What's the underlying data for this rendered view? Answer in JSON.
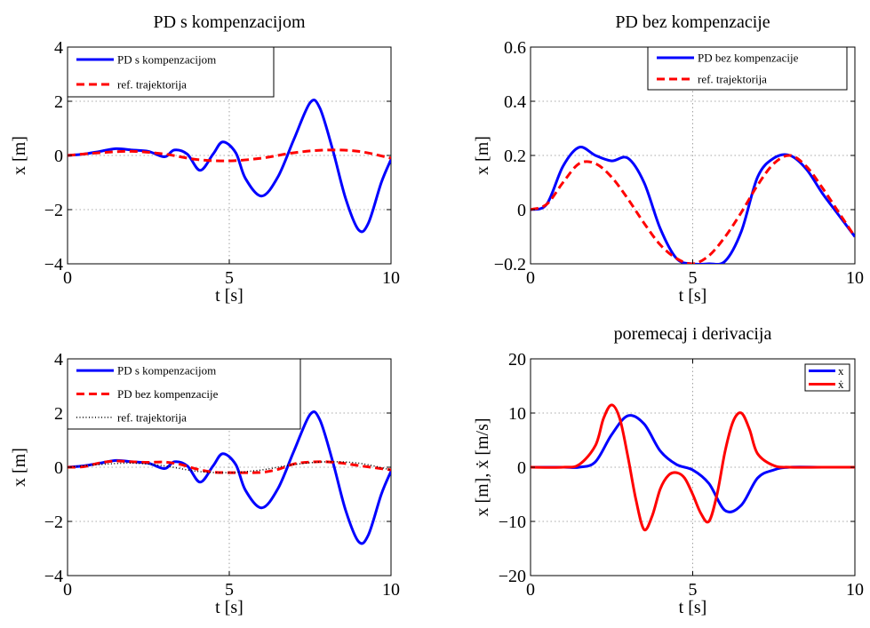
{
  "chart_data": [
    {
      "type": "line",
      "title": "PD s kompenzacijom",
      "xlabel": "t [s]",
      "ylabel": "x [m]",
      "xlim": [
        0,
        10
      ],
      "ylim": [
        -4,
        4
      ],
      "xticks": [
        "0",
        "5",
        "10"
      ],
      "yticks": [
        "−4",
        "−2",
        "0",
        "2",
        "4"
      ],
      "ytick_values": [
        -4,
        -2,
        0,
        2,
        4
      ],
      "grid": true,
      "legend_position": "top-left",
      "series": [
        {
          "name": "PD s kompenzacijom",
          "color": "#0000ff",
          "style": "solid",
          "x": [
            0,
            0.5,
            1,
            1.5,
            2,
            2.5,
            3,
            3.3,
            3.7,
            4.1,
            4.5,
            4.8,
            5.2,
            5.5,
            6,
            6.5,
            7,
            7.5,
            7.8,
            8.2,
            8.6,
            9,
            9.3,
            9.7,
            10
          ],
          "y": [
            0,
            0.05,
            0.15,
            0.25,
            0.2,
            0.15,
            -0.05,
            0.2,
            0.05,
            -0.55,
            0.05,
            0.5,
            0.1,
            -0.85,
            -1.5,
            -0.8,
            0.6,
            1.95,
            1.75,
            0.2,
            -1.6,
            -2.75,
            -2.5,
            -1.0,
            -0.15
          ]
        },
        {
          "name": "ref. trajektorija",
          "color": "#ff0000",
          "style": "dashed",
          "x": [
            0,
            1,
            2,
            3,
            4,
            5,
            6,
            7,
            8,
            9,
            10
          ],
          "y": [
            0,
            0.1,
            0.15,
            0.05,
            -0.15,
            -0.2,
            -0.1,
            0.1,
            0.2,
            0.15,
            -0.1
          ]
        }
      ]
    },
    {
      "type": "line",
      "title": "PD bez kompenzacije",
      "xlabel": "t [s]",
      "ylabel": "x [m]",
      "xlim": [
        0,
        10
      ],
      "ylim": [
        -0.2,
        0.6
      ],
      "xticks": [
        "0",
        "5",
        "10"
      ],
      "yticks": [
        "−0.2",
        "0",
        "0.2",
        "0.4",
        "0.6"
      ],
      "ytick_values": [
        -0.2,
        0,
        0.2,
        0.4,
        0.6
      ],
      "grid": true,
      "legend_position": "top-right",
      "series": [
        {
          "name": "PD bez kompenzacije",
          "color": "#0000ff",
          "style": "solid",
          "x": [
            0,
            0.5,
            1,
            1.5,
            2,
            2.5,
            3,
            3.5,
            4,
            4.5,
            5,
            5.5,
            6,
            6.5,
            7,
            7.5,
            8,
            8.5,
            9,
            9.5,
            10
          ],
          "y": [
            0,
            0.02,
            0.16,
            0.23,
            0.2,
            0.18,
            0.19,
            0.1,
            -0.07,
            -0.18,
            -0.2,
            -0.2,
            -0.19,
            -0.08,
            0.12,
            0.19,
            0.2,
            0.15,
            0.06,
            -0.02,
            -0.1
          ]
        },
        {
          "name": "ref. trajektorija",
          "color": "#ff0000",
          "style": "dashed",
          "x": [
            0,
            0.5,
            1,
            1.5,
            2,
            2.5,
            3,
            3.5,
            4,
            4.5,
            5,
            5.5,
            6,
            6.5,
            7,
            7.5,
            8,
            8.5,
            9,
            9.5,
            10
          ],
          "y": [
            0,
            0.02,
            0.1,
            0.17,
            0.17,
            0.12,
            0.04,
            -0.05,
            -0.13,
            -0.18,
            -0.2,
            -0.17,
            -0.1,
            -0.01,
            0.09,
            0.17,
            0.2,
            0.16,
            0.08,
            -0.01,
            -0.1
          ]
        }
      ]
    },
    {
      "type": "line",
      "title": "",
      "xlabel": "t [s]",
      "ylabel": "x [m]",
      "xlim": [
        0,
        10
      ],
      "ylim": [
        -4,
        4
      ],
      "xticks": [
        "0",
        "5",
        "10"
      ],
      "yticks": [
        "−4",
        "−2",
        "0",
        "2",
        "4"
      ],
      "ytick_values": [
        -4,
        -2,
        0,
        2,
        4
      ],
      "grid": true,
      "legend_position": "top-left",
      "series": [
        {
          "name": "PD s kompenzacijom",
          "color": "#0000ff",
          "style": "solid",
          "x": [
            0,
            0.5,
            1,
            1.5,
            2,
            2.5,
            3,
            3.3,
            3.7,
            4.1,
            4.5,
            4.8,
            5.2,
            5.5,
            6,
            6.5,
            7,
            7.5,
            7.8,
            8.2,
            8.6,
            9,
            9.3,
            9.7,
            10
          ],
          "y": [
            0,
            0.05,
            0.15,
            0.25,
            0.2,
            0.15,
            -0.05,
            0.2,
            0.05,
            -0.55,
            0.05,
            0.5,
            0.1,
            -0.85,
            -1.5,
            -0.8,
            0.6,
            1.95,
            1.75,
            0.2,
            -1.6,
            -2.75,
            -2.5,
            -1.0,
            -0.15
          ]
        },
        {
          "name": "PD bez kompenzacije",
          "color": "#ff0000",
          "style": "dashed",
          "x": [
            0,
            0.5,
            1,
            1.5,
            2,
            2.5,
            3,
            3.5,
            4,
            4.5,
            5,
            5.5,
            6,
            6.5,
            7,
            7.5,
            8,
            8.5,
            9,
            9.5,
            10
          ],
          "y": [
            0,
            0.02,
            0.16,
            0.23,
            0.2,
            0.18,
            0.19,
            0.1,
            -0.07,
            -0.18,
            -0.2,
            -0.2,
            -0.19,
            -0.08,
            0.12,
            0.19,
            0.2,
            0.15,
            0.06,
            -0.02,
            -0.1
          ]
        },
        {
          "name": "ref. trajektorija",
          "color": "#000000",
          "style": "dotted",
          "x": [
            0,
            1,
            2,
            3,
            4,
            5,
            6,
            7,
            8,
            9,
            10
          ],
          "y": [
            0,
            0.1,
            0.15,
            0.05,
            -0.15,
            -0.2,
            -0.1,
            0.1,
            0.2,
            0.15,
            -0.1
          ]
        }
      ]
    },
    {
      "type": "line",
      "title": "poremecaj i derivacija",
      "xlabel": "t [s]",
      "ylabel": "x [m], ẋ [m/s]",
      "xlim": [
        0,
        10
      ],
      "ylim": [
        -20,
        20
      ],
      "xticks": [
        "0",
        "5",
        "10"
      ],
      "yticks": [
        "−20",
        "−10",
        "0",
        "10",
        "20"
      ],
      "ytick_values": [
        -20,
        -10,
        0,
        10,
        20
      ],
      "grid": true,
      "legend_position": "top-right",
      "series": [
        {
          "name": "x",
          "color": "#0000ff",
          "style": "solid",
          "x": [
            0,
            1,
            1.5,
            2,
            2.5,
            3,
            3.5,
            4,
            4.5,
            5,
            5.5,
            6,
            6.5,
            7,
            7.5,
            8,
            9,
            10
          ],
          "y": [
            0,
            0,
            0,
            1,
            6,
            9.5,
            8,
            3,
            0.5,
            -0.5,
            -3,
            -8,
            -7,
            -2,
            -0.5,
            0,
            0,
            0
          ]
        },
        {
          "name": "ẋ",
          "color": "#ff0000",
          "style": "solid",
          "x": [
            0,
            1,
            1.5,
            2,
            2.25,
            2.5,
            2.75,
            3,
            3.25,
            3.5,
            3.75,
            4,
            4.25,
            4.5,
            4.75,
            5,
            5.25,
            5.5,
            5.75,
            6,
            6.25,
            6.5,
            6.75,
            7,
            7.5,
            8,
            9,
            10
          ],
          "y": [
            0,
            0,
            0.5,
            4,
            9,
            11.5,
            9,
            2,
            -6,
            -11.5,
            -9,
            -4,
            -1.5,
            -1,
            -2,
            -5,
            -8.5,
            -10,
            -5,
            3,
            8.5,
            10,
            7,
            2.5,
            0.3,
            0,
            0,
            0
          ]
        }
      ]
    }
  ]
}
